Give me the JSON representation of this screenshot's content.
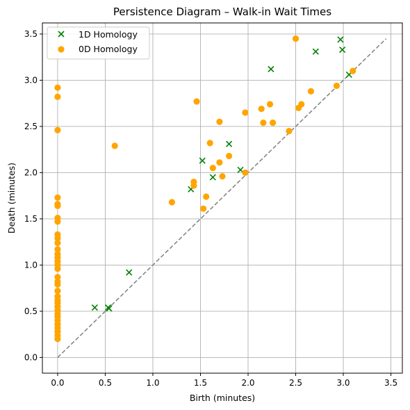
{
  "chart_data": {
    "type": "scatter",
    "title": "Persistence Diagram – Walk-in Wait Times",
    "xlabel": "Birth (minutes)",
    "ylabel": "Death (minutes)",
    "xlim": [
      -0.16,
      3.62
    ],
    "ylim": [
      -0.17,
      3.62
    ],
    "xticks": [
      0.0,
      0.5,
      1.0,
      1.5,
      2.0,
      2.5,
      3.0,
      3.5
    ],
    "yticks": [
      0.0,
      0.5,
      1.0,
      1.5,
      2.0,
      2.5,
      3.0,
      3.5
    ],
    "xtick_labels": [
      "0.0",
      "0.5",
      "1.0",
      "1.5",
      "2.0",
      "2.5",
      "3.0",
      "3.5"
    ],
    "ytick_labels": [
      "0.0",
      "0.5",
      "1.0",
      "1.5",
      "2.0",
      "2.5",
      "3.0",
      "3.5"
    ],
    "grid": true,
    "legend_position": "top-left",
    "diagonal": {
      "from": 0.0,
      "to": 3.45,
      "color": "#808080",
      "style": "dashed"
    },
    "series": [
      {
        "name": "1D Homology",
        "marker": "x",
        "color": "#008000",
        "points": [
          [
            0.39,
            0.54
          ],
          [
            0.53,
            0.54
          ],
          [
            0.54,
            0.53
          ],
          [
            0.75,
            0.92
          ],
          [
            1.4,
            1.82
          ],
          [
            1.52,
            2.13
          ],
          [
            1.63,
            1.95
          ],
          [
            1.8,
            2.31
          ],
          [
            1.92,
            2.03
          ],
          [
            2.24,
            3.12
          ],
          [
            2.71,
            3.31
          ],
          [
            2.97,
            3.44
          ],
          [
            2.99,
            3.33
          ],
          [
            3.06,
            3.06
          ]
        ]
      },
      {
        "name": "0D Homology",
        "marker": "o",
        "color": "#FFA500",
        "points": [
          [
            0.0,
            0.2
          ],
          [
            0.0,
            0.24
          ],
          [
            0.0,
            0.28
          ],
          [
            0.0,
            0.32
          ],
          [
            0.0,
            0.36
          ],
          [
            0.0,
            0.4
          ],
          [
            0.0,
            0.44
          ],
          [
            0.0,
            0.47
          ],
          [
            0.0,
            0.51
          ],
          [
            0.0,
            0.55
          ],
          [
            0.0,
            0.59
          ],
          [
            0.0,
            0.62
          ],
          [
            0.0,
            0.66
          ],
          [
            0.0,
            0.72
          ],
          [
            0.0,
            0.79
          ],
          [
            0.0,
            0.82
          ],
          [
            0.0,
            0.87
          ],
          [
            0.0,
            0.96
          ],
          [
            0.0,
            1.0
          ],
          [
            0.0,
            1.04
          ],
          [
            0.0,
            1.08
          ],
          [
            0.0,
            1.12
          ],
          [
            0.0,
            1.17
          ],
          [
            0.0,
            1.24
          ],
          [
            0.0,
            1.29
          ],
          [
            0.0,
            1.33
          ],
          [
            0.0,
            1.47
          ],
          [
            0.0,
            1.51
          ],
          [
            0.0,
            1.64
          ],
          [
            0.0,
            1.66
          ],
          [
            0.0,
            1.73
          ],
          [
            0.0,
            2.46
          ],
          [
            0.0,
            2.82
          ],
          [
            0.0,
            2.92
          ],
          [
            0.6,
            2.29
          ],
          [
            1.2,
            1.68
          ],
          [
            1.43,
            1.86
          ],
          [
            1.43,
            1.9
          ],
          [
            1.46,
            2.77
          ],
          [
            1.53,
            1.61
          ],
          [
            1.56,
            1.74
          ],
          [
            1.6,
            2.32
          ],
          [
            1.63,
            2.05
          ],
          [
            1.7,
            2.11
          ],
          [
            1.7,
            2.55
          ],
          [
            1.73,
            1.96
          ],
          [
            1.8,
            2.18
          ],
          [
            1.97,
            2.0
          ],
          [
            1.97,
            2.65
          ],
          [
            2.14,
            2.69
          ],
          [
            2.16,
            2.54
          ],
          [
            2.23,
            2.74
          ],
          [
            2.26,
            2.54
          ],
          [
            2.43,
            2.45
          ],
          [
            2.5,
            3.45
          ],
          [
            2.53,
            2.7
          ],
          [
            2.56,
            2.74
          ],
          [
            2.66,
            2.88
          ],
          [
            2.93,
            2.94
          ],
          [
            3.1,
            3.1
          ]
        ]
      }
    ]
  }
}
